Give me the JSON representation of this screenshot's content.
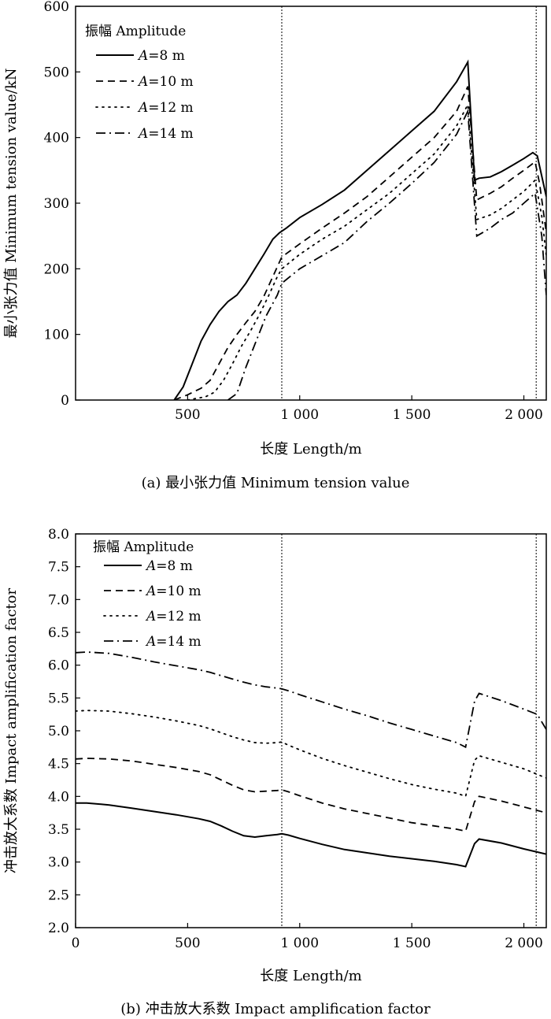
{
  "chart_data": [
    {
      "type": "line",
      "caption": "(a) 最小张力值 Minimum tension value",
      "xlabel": "长度 Length/m",
      "ylabel": "最小张力值 Minimum tension value/kN",
      "xlim": [
        0,
        2100
      ],
      "ylim": [
        0,
        600
      ],
      "x_ticks": [
        500,
        1000,
        1500,
        2000
      ],
      "x_tick_labels": [
        "500",
        "1 000",
        "1 500",
        "2 000"
      ],
      "y_ticks": [
        0,
        100,
        200,
        300,
        400,
        500,
        600
      ],
      "y_tick_labels": [
        "0",
        "100",
        "200",
        "300",
        "400",
        "500",
        "600"
      ],
      "vlines": [
        920,
        2055
      ],
      "legend_title": "振幅 Amplitude",
      "legend_position": "top-left",
      "series": [
        {
          "name_var": "A",
          "name_val": "=8 m",
          "style": "solid",
          "x": [
            440,
            480,
            520,
            560,
            600,
            640,
            680,
            720,
            760,
            800,
            840,
            880,
            910,
            940,
            1000,
            1100,
            1200,
            1300,
            1400,
            1500,
            1600,
            1700,
            1750,
            1780,
            1800,
            1850,
            1900,
            1950,
            2000,
            2040,
            2060,
            2100
          ],
          "y": [
            0,
            20,
            55,
            90,
            115,
            135,
            150,
            160,
            178,
            200,
            222,
            245,
            255,
            262,
            278,
            298,
            320,
            350,
            380,
            410,
            440,
            485,
            515,
            335,
            338,
            340,
            348,
            358,
            368,
            377,
            372,
            310
          ]
        },
        {
          "name_var": "A",
          "name_val": "=10 m",
          "style": "dashed",
          "x": [
            440,
            500,
            560,
            600,
            640,
            680,
            720,
            760,
            800,
            840,
            880,
            920,
            1000,
            1100,
            1200,
            1300,
            1400,
            1500,
            1600,
            1700,
            1750,
            1790,
            1850,
            1900,
            1950,
            2000,
            2050,
            2070,
            2100
          ],
          "y": [
            0,
            8,
            18,
            30,
            55,
            80,
            100,
            118,
            135,
            158,
            188,
            218,
            238,
            262,
            285,
            310,
            340,
            370,
            400,
            440,
            478,
            305,
            315,
            325,
            338,
            350,
            363,
            330,
            255
          ]
        },
        {
          "name_var": "A",
          "name_val": "=12 m",
          "style": "dotted",
          "x": [
            500,
            580,
            620,
            660,
            700,
            740,
            780,
            820,
            860,
            900,
            920,
            1000,
            1100,
            1200,
            1300,
            1400,
            1500,
            1600,
            1700,
            1750,
            1790,
            1850,
            1900,
            1950,
            2000,
            2050,
            2080,
            2100
          ],
          "y": [
            0,
            5,
            12,
            30,
            55,
            82,
            105,
            130,
            158,
            188,
            200,
            222,
            245,
            265,
            290,
            315,
            345,
            375,
            418,
            450,
            275,
            282,
            292,
            305,
            318,
            335,
            280,
            220
          ]
        },
        {
          "name_var": "A",
          "name_val": "=14 m",
          "style": "dashdot",
          "x": [
            680,
            720,
            760,
            800,
            850,
            900,
            920,
            1000,
            1100,
            1200,
            1300,
            1400,
            1500,
            1600,
            1700,
            1750,
            1790,
            1850,
            1900,
            1950,
            2000,
            2050,
            2080,
            2100
          ],
          "y": [
            0,
            10,
            50,
            85,
            128,
            160,
            178,
            200,
            220,
            240,
            272,
            300,
            330,
            362,
            405,
            440,
            250,
            262,
            275,
            285,
            300,
            315,
            250,
            160
          ]
        }
      ]
    },
    {
      "type": "line",
      "caption": "(b) 冲击放大系数 Impact amplification factor",
      "xlabel": "长度 Length/m",
      "ylabel": "冲击放大系数 Impact amplification factor",
      "xlim": [
        0,
        2100
      ],
      "ylim": [
        2.0,
        8.0
      ],
      "x_ticks": [
        0,
        500,
        1000,
        1500,
        2000
      ],
      "x_tick_labels": [
        "0",
        "500",
        "1 000",
        "1 500",
        "2 000"
      ],
      "y_ticks": [
        2.0,
        2.5,
        3.0,
        3.5,
        4.0,
        4.5,
        5.0,
        5.5,
        6.0,
        6.5,
        7.0,
        7.5,
        8.0
      ],
      "y_tick_labels": [
        "2.0",
        "2.5",
        "3.0",
        "3.5",
        "4.0",
        "4.5",
        "5.0",
        "5.5",
        "6.0",
        "6.5",
        "7.0",
        "7.5",
        "8.0"
      ],
      "vlines": [
        920,
        2055
      ],
      "legend_title": "振幅 Amplitude",
      "legend_position": "top-left",
      "series": [
        {
          "name_var": "A",
          "name_val": "=8 m",
          "style": "solid",
          "x": [
            0,
            50,
            150,
            250,
            350,
            450,
            550,
            600,
            650,
            700,
            750,
            800,
            850,
            900,
            920,
            950,
            1000,
            1100,
            1200,
            1300,
            1400,
            1500,
            1600,
            1700,
            1740,
            1780,
            1800,
            1900,
            2000,
            2100
          ],
          "y": [
            3.9,
            3.9,
            3.87,
            3.82,
            3.77,
            3.72,
            3.66,
            3.62,
            3.55,
            3.47,
            3.4,
            3.38,
            3.4,
            3.42,
            3.43,
            3.41,
            3.36,
            3.27,
            3.19,
            3.14,
            3.09,
            3.05,
            3.01,
            2.96,
            2.93,
            3.28,
            3.35,
            3.29,
            3.2,
            3.12
          ]
        },
        {
          "name_var": "A",
          "name_val": "=10 m",
          "style": "dashed",
          "x": [
            0,
            50,
            150,
            250,
            350,
            450,
            550,
            600,
            650,
            700,
            750,
            800,
            850,
            900,
            920,
            950,
            1000,
            1100,
            1200,
            1300,
            1400,
            1500,
            1600,
            1700,
            1740,
            1780,
            1800,
            1900,
            2000,
            2100
          ],
          "y": [
            4.57,
            4.58,
            4.57,
            4.54,
            4.49,
            4.44,
            4.38,
            4.33,
            4.25,
            4.17,
            4.1,
            4.07,
            4.08,
            4.09,
            4.1,
            4.07,
            4.01,
            3.9,
            3.81,
            3.74,
            3.67,
            3.6,
            3.55,
            3.5,
            3.47,
            3.92,
            4.0,
            3.93,
            3.84,
            3.75
          ]
        },
        {
          "name_var": "A",
          "name_val": "=12 m",
          "style": "dotted",
          "x": [
            0,
            50,
            150,
            250,
            350,
            450,
            550,
            600,
            650,
            700,
            750,
            800,
            850,
            900,
            920,
            950,
            1000,
            1100,
            1200,
            1300,
            1400,
            1500,
            1600,
            1700,
            1740,
            1780,
            1800,
            1900,
            2000,
            2100
          ],
          "y": [
            5.3,
            5.31,
            5.3,
            5.26,
            5.21,
            5.15,
            5.08,
            5.03,
            4.97,
            4.91,
            4.86,
            4.82,
            4.81,
            4.82,
            4.83,
            4.78,
            4.71,
            4.58,
            4.47,
            4.37,
            4.27,
            4.18,
            4.11,
            4.05,
            4.0,
            4.55,
            4.62,
            4.52,
            4.42,
            4.28
          ]
        },
        {
          "name_var": "A",
          "name_val": "=14 m",
          "style": "dashdot",
          "x": [
            0,
            50,
            150,
            250,
            350,
            450,
            550,
            600,
            650,
            700,
            750,
            800,
            850,
            900,
            920,
            950,
            1000,
            1100,
            1200,
            1300,
            1400,
            1500,
            1600,
            1700,
            1740,
            1780,
            1800,
            1900,
            2000,
            2060,
            2100
          ],
          "y": [
            6.19,
            6.2,
            6.18,
            6.12,
            6.05,
            5.99,
            5.93,
            5.89,
            5.84,
            5.79,
            5.74,
            5.7,
            5.67,
            5.65,
            5.64,
            5.61,
            5.55,
            5.44,
            5.33,
            5.23,
            5.12,
            5.02,
            4.92,
            4.82,
            4.75,
            5.45,
            5.57,
            5.46,
            5.33,
            5.25,
            5.02
          ]
        }
      ]
    }
  ]
}
